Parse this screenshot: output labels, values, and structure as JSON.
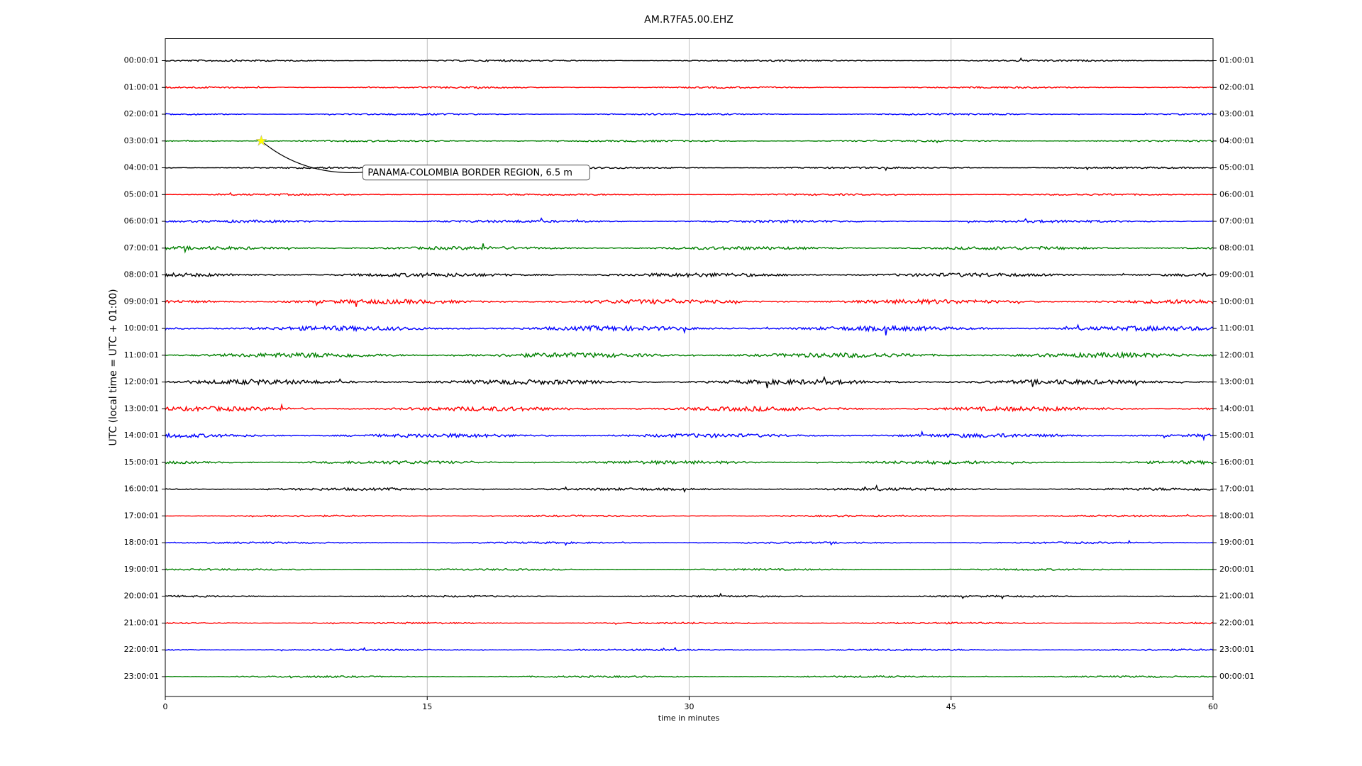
{
  "chart_data": {
    "type": "helicorder",
    "title": "AM.R7FA5.00.EHZ",
    "xlabel": "time in minutes",
    "ylabel": "UTC (local time = UTC + 01:00)",
    "xlim": [
      0,
      60
    ],
    "xticks": [
      0,
      15,
      30,
      45,
      60
    ],
    "grid": true,
    "colors": [
      "#000000",
      "#ff0000",
      "#0000ff",
      "#008000"
    ],
    "left_labels": [
      "00:00:01",
      "01:00:01",
      "02:00:01",
      "03:00:01",
      "04:00:01",
      "05:00:01",
      "06:00:01",
      "07:00:01",
      "08:00:01",
      "09:00:01",
      "10:00:01",
      "11:00:01",
      "12:00:01",
      "13:00:01",
      "14:00:01",
      "15:00:01",
      "16:00:01",
      "17:00:01",
      "18:00:01",
      "19:00:01",
      "20:00:01",
      "21:00:01",
      "22:00:01",
      "23:00:01"
    ],
    "right_labels": [
      "01:00:01",
      "02:00:01",
      "03:00:01",
      "04:00:01",
      "05:00:01",
      "06:00:01",
      "07:00:01",
      "08:00:01",
      "09:00:01",
      "10:00:01",
      "11:00:01",
      "12:00:01",
      "13:00:01",
      "14:00:01",
      "15:00:01",
      "16:00:01",
      "17:00:01",
      "18:00:01",
      "19:00:01",
      "20:00:01",
      "21:00:01",
      "22:00:01",
      "23:00:01",
      "00:00:01"
    ],
    "annotation": {
      "text": "PANAMA-COLOMBIA BORDER REGION, 6.5 m",
      "row": 3,
      "x": 5.5,
      "marker_color": "#ffff00"
    }
  }
}
